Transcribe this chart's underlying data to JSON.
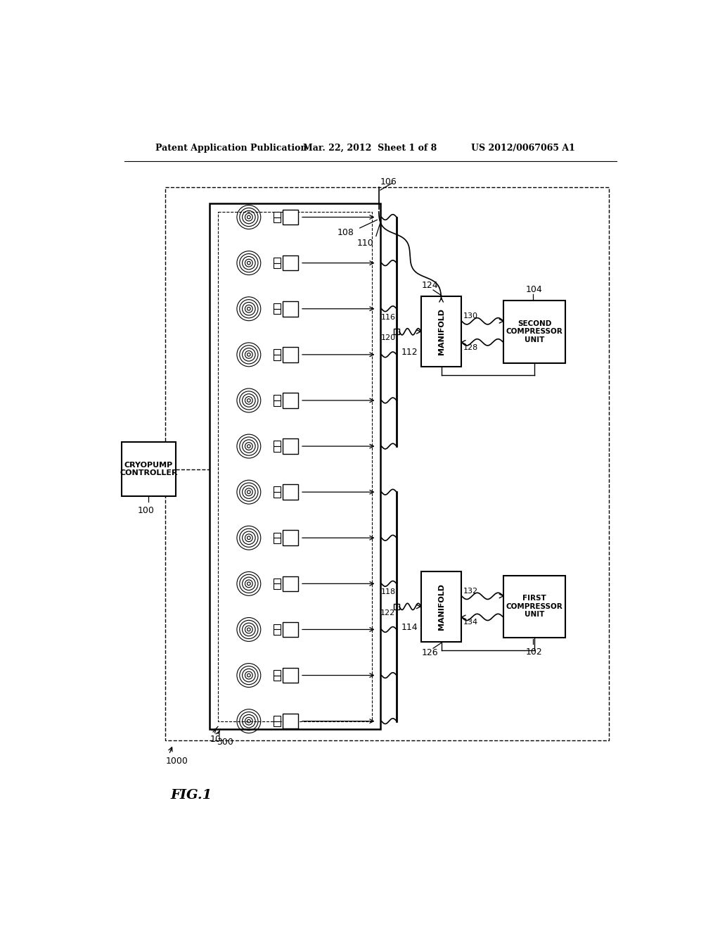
{
  "bg_color": "#ffffff",
  "header_left": "Patent Application Publication",
  "header_mid": "Mar. 22, 2012  Sheet 1 of 8",
  "header_right": "US 2012/0067065 A1",
  "fig_label": "FIG.1",
  "num_pumps": 12,
  "labels": {
    "system": "1000",
    "outer_box": "300",
    "inner_box": "10",
    "controller": "100",
    "comp1_ref": "102",
    "comp2_ref": "104",
    "l106": "106",
    "l108": "108",
    "l110": "110",
    "l112": "112",
    "l114": "114",
    "l116": "116",
    "l118": "118",
    "l120": "120",
    "l122": "122",
    "l124": "124",
    "l126": "126",
    "l128": "128",
    "l130": "130",
    "l132": "132",
    "l134": "134"
  },
  "texts": {
    "controller": "CRYOPUMP\nCONTROLLER",
    "manifold_upper": "MANIFOLD",
    "manifold_lower": "MANIFOLD",
    "comp1": "FIRST\nCOMPRESSOR\nUNIT",
    "comp2": "SECOND\nCOMPRESSOR\nUNIT"
  }
}
